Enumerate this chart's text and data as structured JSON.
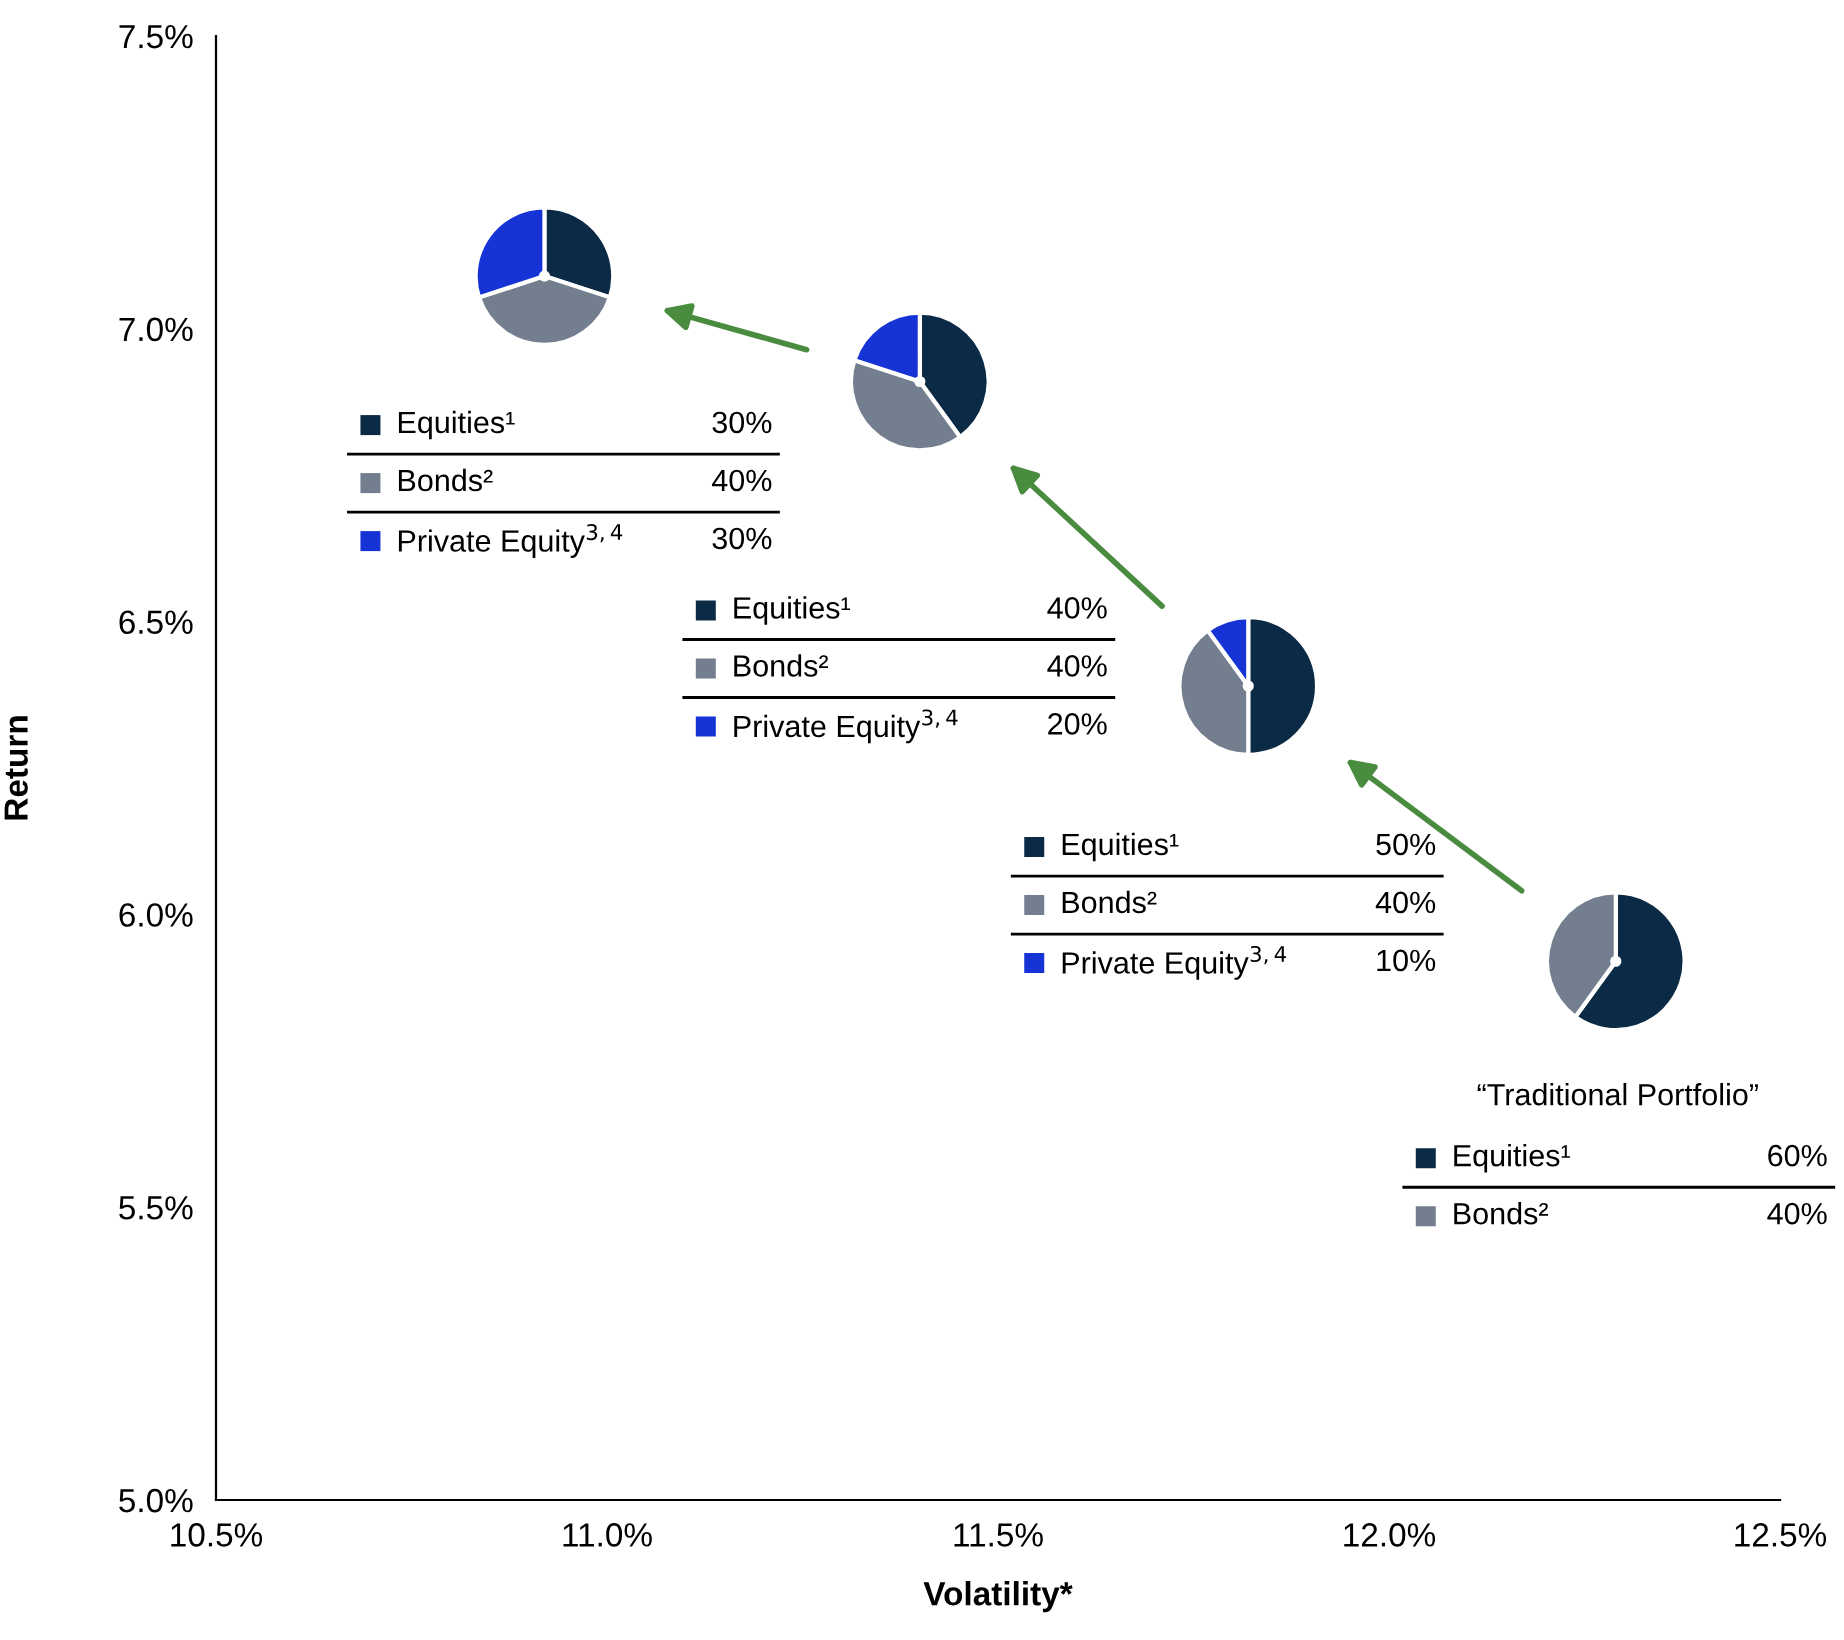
{
  "chart_data": [
    {
      "type": "scatter",
      "xlabel": "Volatility*",
      "ylabel": "Return",
      "x": [
        10.92,
        11.4,
        11.82,
        12.29
      ],
      "values": [
        7.09,
        6.91,
        6.39,
        5.92
      ],
      "marker": "circle",
      "grid": false,
      "xlim": [
        10.5,
        12.5
      ],
      "ylim": [
        5.0,
        7.5
      ],
      "xticks": [
        {
          "value": 10.5,
          "label": "10.5%"
        },
        {
          "value": 11.0,
          "label": "11.0%"
        },
        {
          "value": 11.5,
          "label": "11.5%"
        },
        {
          "value": 12.0,
          "label": "12.0%"
        },
        {
          "value": 12.5,
          "label": "12.5%"
        }
      ],
      "yticks": [
        {
          "value": 5.0,
          "label": "5.0%"
        },
        {
          "value": 5.5,
          "label": "5.5%"
        },
        {
          "value": 6.0,
          "label": "6.0%"
        },
        {
          "value": 6.5,
          "label": "6.5%"
        },
        {
          "value": 7.0,
          "label": "7.0%"
        },
        {
          "value": 7.5,
          "label": "7.5%"
        }
      ]
    },
    {
      "type": "pie",
      "categories": [
        "Equities¹",
        "Bonds²",
        "Private Equity$^{3,4}$"
      ],
      "values": [
        30,
        40,
        30
      ],
      "colors": [
        "#0b2a45",
        "#737f8f",
        "#1633d6"
      ],
      "value_labels": [
        "30%",
        "40%",
        "30%"
      ],
      "legend": "bottom"
    },
    {
      "type": "pie",
      "categories": [
        "Equities¹",
        "Bonds²",
        "Private Equity$^{3,4}$"
      ],
      "values": [
        40,
        40,
        20
      ],
      "colors": [
        "#0b2a45",
        "#737f8f",
        "#1633d6"
      ],
      "value_labels": [
        "40%",
        "40%",
        "20%"
      ],
      "legend": "bottom"
    },
    {
      "type": "pie",
      "categories": [
        "Equities¹",
        "Bonds²",
        "Private Equity$^{3,4}$"
      ],
      "values": [
        50,
        40,
        10
      ],
      "colors": [
        "#0b2a45",
        "#737f8f",
        "#1633d6"
      ],
      "value_labels": [
        "50%",
        "40%",
        "10%"
      ],
      "legend": "bottom"
    },
    {
      "type": "pie",
      "title": "“Traditional Portfolio”",
      "categories": [
        "Equities¹",
        "Bonds²"
      ],
      "values": [
        60,
        40
      ],
      "colors": [
        "#0b2a45",
        "#737f8f"
      ],
      "value_labels": [
        "60%",
        "40%"
      ],
      "legend": "bottom"
    }
  ]
}
